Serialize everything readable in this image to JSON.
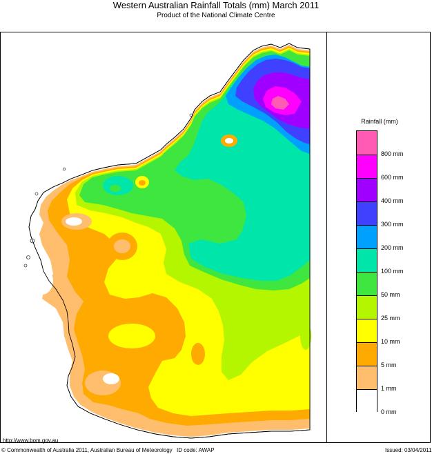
{
  "header": {
    "title": "Western Australian Rainfall Totals (mm) March 2011",
    "subtitle": "Product of the National Climate Centre"
  },
  "legend": {
    "title": "Rainfall (mm)",
    "labels": [
      "800 mm",
      "600 mm",
      "400 mm",
      "300 mm",
      "200 mm",
      "100 mm",
      "50 mm",
      "25 mm",
      "10 mm",
      "5 mm",
      "1 mm",
      "0 mm"
    ],
    "colors": [
      "#ff5ab4",
      "#ff00ff",
      "#a000ff",
      "#4040ff",
      "#00a0ff",
      "#00e6aa",
      "#40e640",
      "#b4f500",
      "#ffff00",
      "#ffaa00",
      "#ffbe6e",
      "#ffffff"
    ]
  },
  "footer": {
    "url": "http://www.bom.gov.au",
    "copyright": "© Commonwealth of Australia 2011, Australian Bureau of Meteorology",
    "id_code": "ID code: AWAP",
    "issued": "Issued: 03/04/2011"
  }
}
